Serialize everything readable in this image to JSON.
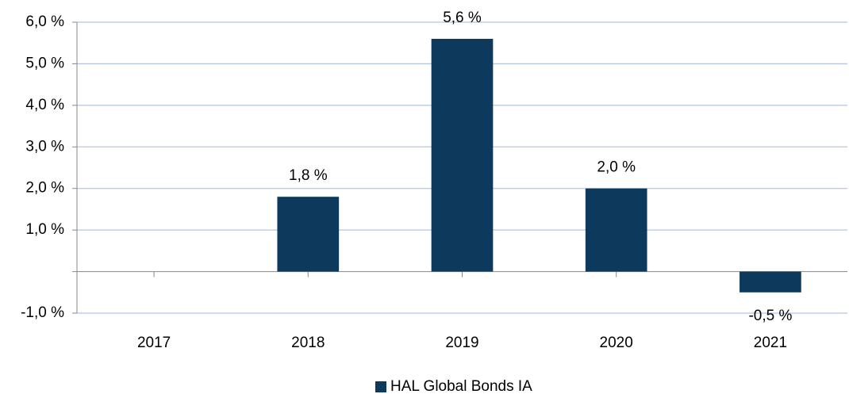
{
  "chart_data": {
    "type": "bar",
    "categories": [
      "2017",
      "2018",
      "2019",
      "2020",
      "2021"
    ],
    "series": [
      {
        "name": "HAL Global Bonds IA",
        "color": "#0d3a5c",
        "values": [
          null,
          1.8,
          5.6,
          2.0,
          -0.5
        ],
        "value_labels": [
          null,
          "1,8 %",
          "5,6 %",
          "2,0 %",
          "-0,5 %"
        ]
      }
    ],
    "ylim": [
      -1,
      6
    ],
    "yticks": [
      {
        "value": -1,
        "label": "-1,0 %"
      },
      {
        "value": 1,
        "label": "1,0 %"
      },
      {
        "value": 2,
        "label": "2,0 %"
      },
      {
        "value": 3,
        "label": "3,0 %"
      },
      {
        "value": 4,
        "label": "4,0 %"
      },
      {
        "value": 5,
        "label": "5,0 %"
      },
      {
        "value": 6,
        "label": "6,0 %"
      }
    ],
    "grid": true,
    "legend": "bottom"
  }
}
